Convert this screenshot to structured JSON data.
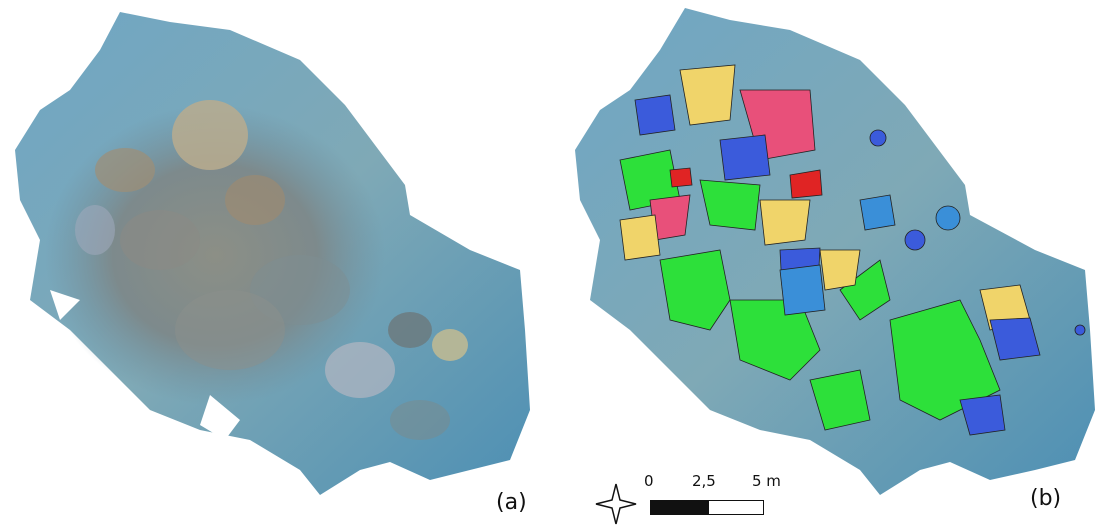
{
  "panels": [
    {
      "label": "(a)",
      "content": "orthomosaic-photo"
    },
    {
      "label": "(b)",
      "content": "segmented-orthomosaic"
    }
  ],
  "scale_bar": {
    "ticks": [
      "0",
      "2,5",
      "5 m"
    ]
  },
  "colors": {
    "water_light": "#7fb0c8",
    "water_mid": "#5a8fa9",
    "water_dark": "#3f7796",
    "seg_blue": "#3b5bdb",
    "seg_sky": "#3a8fd8",
    "seg_yellow": "#f0d46a",
    "seg_green": "#2de03a",
    "seg_pink": "#e8507a",
    "seg_red": "#e02424"
  }
}
